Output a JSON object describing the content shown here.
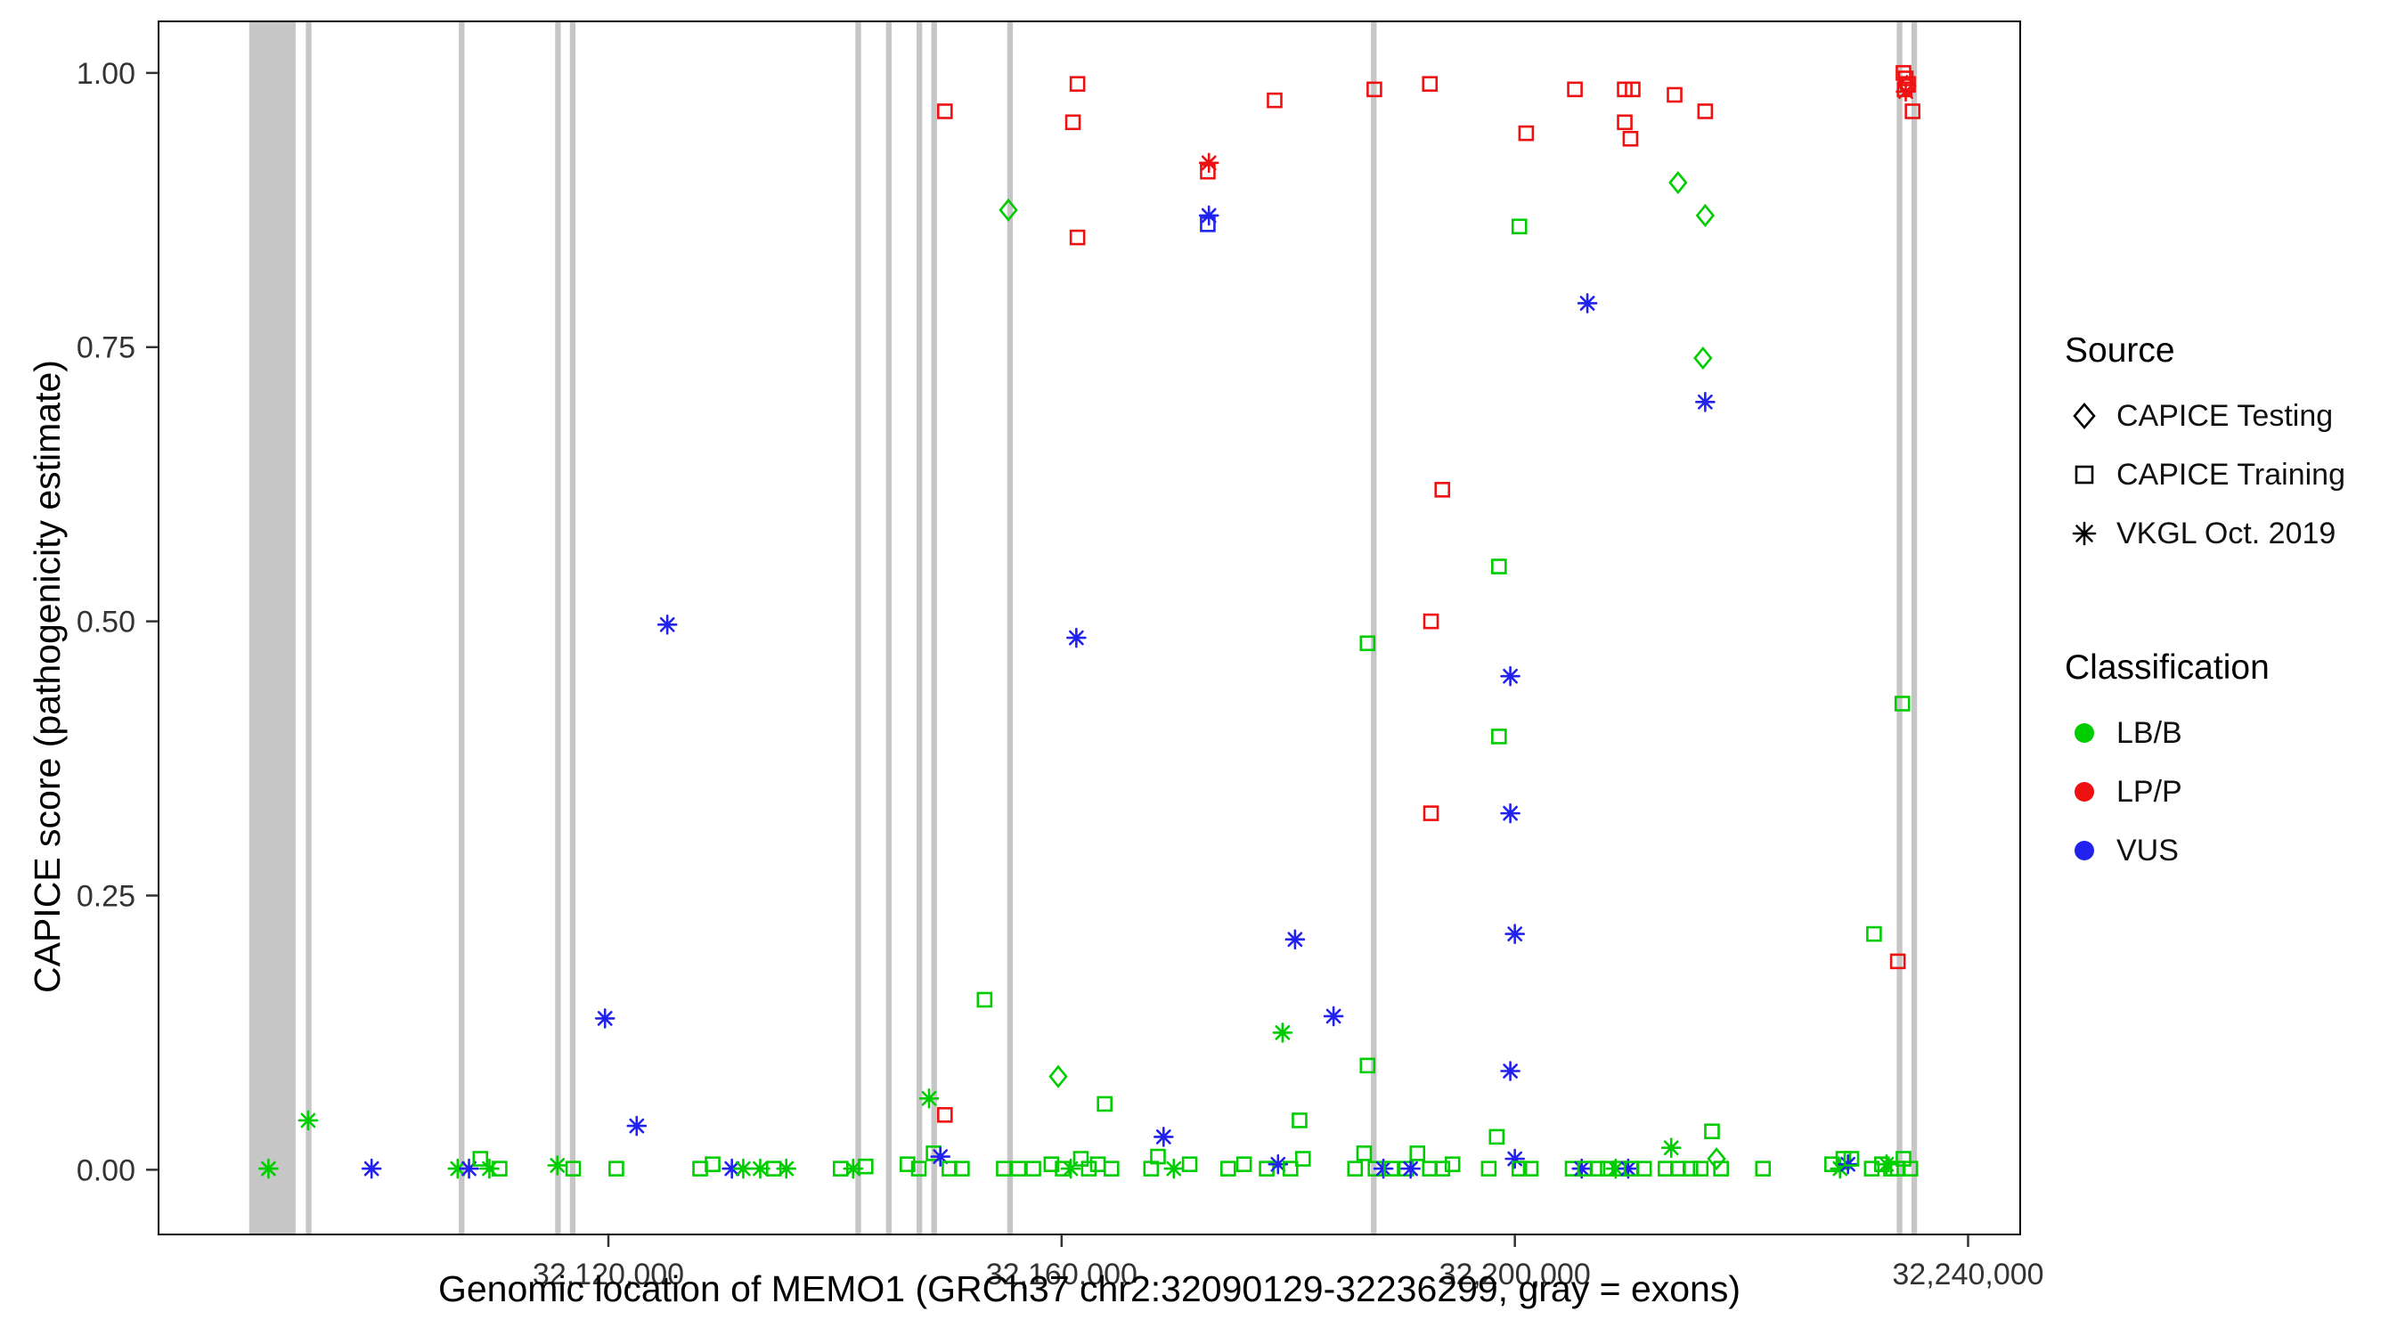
{
  "chart_data": {
    "type": "scatter",
    "xlabel": "Genomic location of MEMO1 (GRCh37 chr2:32090129-32236299, gray = exons)",
    "ylabel": "CAPICE score (pathogenicity estimate)",
    "x_range": [
      32080300,
      32244600
    ],
    "y_range": [
      -0.059,
      1.047
    ],
    "x_ticks": [
      {
        "value": 32120000,
        "label": "32,120,000"
      },
      {
        "value": 32160000,
        "label": "32,160,000"
      },
      {
        "value": 32200000,
        "label": "32,200,000"
      },
      {
        "value": 32240000,
        "label": "32,240,000"
      }
    ],
    "y_ticks": [
      {
        "value": 0.0,
        "label": "0.00"
      },
      {
        "value": 0.25,
        "label": "0.25"
      },
      {
        "value": 0.5,
        "label": "0.50"
      },
      {
        "value": 0.75,
        "label": "0.75"
      },
      {
        "value": 1.0,
        "label": "1.00"
      }
    ],
    "colors": {
      "LB/B": "#00cd00",
      "LP/P": "#ee1111",
      "VUS": "#2222ee",
      "exon": "#c6c6c6",
      "axis": "#333333"
    },
    "legend": {
      "source": {
        "title": "Source",
        "items": [
          {
            "label": "CAPICE Testing",
            "marker": "diamond"
          },
          {
            "label": "CAPICE Training",
            "marker": "square"
          },
          {
            "label": "VKGL Oct. 2019",
            "marker": "asterisk"
          }
        ]
      },
      "classification": {
        "title": "Classification",
        "items": [
          {
            "label": "LB/B",
            "color": "#00cd00"
          },
          {
            "label": "LP/P",
            "color": "#ee1111"
          },
          {
            "label": "VUS",
            "color": "#2222ee"
          }
        ]
      }
    },
    "exons": [
      [
        32088300,
        32092400
      ],
      [
        32093300,
        32093800
      ],
      [
        32106800,
        32107300
      ],
      [
        32115300,
        32115800
      ],
      [
        32116600,
        32117100
      ],
      [
        32141800,
        32142300
      ],
      [
        32144500,
        32145000
      ],
      [
        32147200,
        32147700
      ],
      [
        32148500,
        32149000
      ],
      [
        32155200,
        32155700
      ],
      [
        32187300,
        32187800
      ],
      [
        32233700,
        32234200
      ],
      [
        32235000,
        32235500
      ]
    ],
    "points": [
      [
        32090000,
        0.001,
        "vkgl",
        "LB/B"
      ],
      [
        32093500,
        0.045,
        "vkgl",
        "LB/B"
      ],
      [
        32099100,
        0.001,
        "vkgl",
        "VUS"
      ],
      [
        32106700,
        0.001,
        "vkgl",
        "LB/B"
      ],
      [
        32107700,
        0.001,
        "vkgl",
        "VUS"
      ],
      [
        32108700,
        0.01,
        "training",
        "LB/B"
      ],
      [
        32109500,
        0.001,
        "vkgl",
        "LB/B"
      ],
      [
        32110400,
        0.001,
        "training",
        "LB/B"
      ],
      [
        32115500,
        0.004,
        "vkgl",
        "LB/B"
      ],
      [
        32116900,
        0.001,
        "training",
        "LB/B"
      ],
      [
        32119700,
        0.138,
        "vkgl",
        "VUS"
      ],
      [
        32120700,
        0.001,
        "training",
        "LB/B"
      ],
      [
        32122500,
        0.04,
        "vkgl",
        "VUS"
      ],
      [
        32125200,
        0.497,
        "vkgl",
        "VUS"
      ],
      [
        32128100,
        0.001,
        "training",
        "LB/B"
      ],
      [
        32129200,
        0.005,
        "training",
        "LB/B"
      ],
      [
        32130900,
        0.001,
        "vkgl",
        "VUS"
      ],
      [
        32131900,
        0.001,
        "vkgl",
        "LB/B"
      ],
      [
        32133400,
        0.001,
        "vkgl",
        "LB/B"
      ],
      [
        32134600,
        0.001,
        "training",
        "LB/B"
      ],
      [
        32135700,
        0.001,
        "vkgl",
        "LB/B"
      ],
      [
        32140500,
        0.001,
        "training",
        "LB/B"
      ],
      [
        32141600,
        0.001,
        "vkgl",
        "LB/B"
      ],
      [
        32142700,
        0.003,
        "training",
        "LB/B"
      ],
      [
        32146400,
        0.005,
        "training",
        "LB/B"
      ],
      [
        32147400,
        0.001,
        "training",
        "LB/B"
      ],
      [
        32148300,
        0.065,
        "vkgl",
        "LB/B"
      ],
      [
        32148700,
        0.015,
        "training",
        "LB/B"
      ],
      [
        32149300,
        0.012,
        "vkgl",
        "VUS"
      ],
      [
        32149700,
        0.05,
        "training",
        "LP/P"
      ],
      [
        32149700,
        0.965,
        "training",
        "LP/P"
      ],
      [
        32150100,
        0.001,
        "training",
        "LB/B"
      ],
      [
        32151200,
        0.001,
        "training",
        "LB/B"
      ],
      [
        32153200,
        0.155,
        "training",
        "LB/B"
      ],
      [
        32154900,
        0.001,
        "training",
        "LB/B"
      ],
      [
        32155300,
        0.875,
        "testing",
        "LB/B"
      ],
      [
        32156200,
        0.001,
        "training",
        "LB/B"
      ],
      [
        32157500,
        0.001,
        "training",
        "LB/B"
      ],
      [
        32159100,
        0.005,
        "training",
        "LB/B"
      ],
      [
        32159700,
        0.085,
        "testing",
        "LB/B"
      ],
      [
        32160100,
        0.001,
        "training",
        "LB/B"
      ],
      [
        32160800,
        0.001,
        "vkgl",
        "LB/B"
      ],
      [
        32161000,
        0.955,
        "training",
        "LP/P"
      ],
      [
        32161400,
        0.99,
        "training",
        "LP/P"
      ],
      [
        32161400,
        0.85,
        "training",
        "LP/P"
      ],
      [
        32161300,
        0.485,
        "vkgl",
        "VUS"
      ],
      [
        32161700,
        0.01,
        "training",
        "LB/B"
      ],
      [
        32162400,
        0.001,
        "training",
        "LB/B"
      ],
      [
        32163200,
        0.005,
        "training",
        "LB/B"
      ],
      [
        32163800,
        0.06,
        "training",
        "LB/B"
      ],
      [
        32164400,
        0.001,
        "training",
        "LB/B"
      ],
      [
        32167900,
        0.001,
        "training",
        "LB/B"
      ],
      [
        32168500,
        0.012,
        "training",
        "LB/B"
      ],
      [
        32169000,
        0.03,
        "vkgl",
        "VUS"
      ],
      [
        32169900,
        0.001,
        "vkgl",
        "LB/B"
      ],
      [
        32171300,
        0.005,
        "training",
        "LB/B"
      ],
      [
        32172900,
        0.91,
        "training",
        "LP/P"
      ],
      [
        32173000,
        0.918,
        "vkgl",
        "LP/P"
      ],
      [
        32173000,
        0.87,
        "vkgl",
        "VUS"
      ],
      [
        32172900,
        0.862,
        "training",
        "VUS"
      ],
      [
        32174700,
        0.001,
        "training",
        "LB/B"
      ],
      [
        32176100,
        0.005,
        "training",
        "LB/B"
      ],
      [
        32178100,
        0.001,
        "training",
        "LB/B"
      ],
      [
        32178800,
        0.975,
        "training",
        "LP/P"
      ],
      [
        32179100,
        0.005,
        "vkgl",
        "VUS"
      ],
      [
        32179500,
        0.125,
        "vkgl",
        "LB/B"
      ],
      [
        32180200,
        0.001,
        "training",
        "LB/B"
      ],
      [
        32180600,
        0.21,
        "vkgl",
        "VUS"
      ],
      [
        32181000,
        0.045,
        "training",
        "LB/B"
      ],
      [
        32181300,
        0.01,
        "training",
        "LB/B"
      ],
      [
        32184000,
        0.14,
        "vkgl",
        "VUS"
      ],
      [
        32185900,
        0.001,
        "training",
        "LB/B"
      ],
      [
        32186700,
        0.015,
        "training",
        "LB/B"
      ],
      [
        32187000,
        0.095,
        "training",
        "LB/B"
      ],
      [
        32187000,
        0.48,
        "training",
        "LB/B"
      ],
      [
        32187600,
        0.985,
        "training",
        "LP/P"
      ],
      [
        32187700,
        0.001,
        "training",
        "LB/B"
      ],
      [
        32188400,
        0.001,
        "vkgl",
        "VUS"
      ],
      [
        32189100,
        0.001,
        "training",
        "LB/B"
      ],
      [
        32190400,
        0.001,
        "training",
        "LB/B"
      ],
      [
        32190800,
        0.001,
        "vkgl",
        "VUS"
      ],
      [
        32191400,
        0.015,
        "training",
        "LB/B"
      ],
      [
        32192500,
        0.99,
        "training",
        "LP/P"
      ],
      [
        32192600,
        0.5,
        "training",
        "LP/P"
      ],
      [
        32192600,
        0.325,
        "training",
        "LP/P"
      ],
      [
        32193600,
        0.62,
        "training",
        "LP/P"
      ],
      [
        32192500,
        0.001,
        "training",
        "LB/B"
      ],
      [
        32193600,
        0.001,
        "training",
        "LB/B"
      ],
      [
        32194500,
        0.005,
        "training",
        "LB/B"
      ],
      [
        32197700,
        0.001,
        "training",
        "LB/B"
      ],
      [
        32198400,
        0.03,
        "training",
        "LB/B"
      ],
      [
        32198600,
        0.55,
        "training",
        "LB/B"
      ],
      [
        32198600,
        0.395,
        "training",
        "LB/B"
      ],
      [
        32199600,
        0.45,
        "vkgl",
        "VUS"
      ],
      [
        32199600,
        0.325,
        "vkgl",
        "VUS"
      ],
      [
        32200000,
        0.215,
        "vkgl",
        "VUS"
      ],
      [
        32199600,
        0.09,
        "vkgl",
        "VUS"
      ],
      [
        32200400,
        0.86,
        "training",
        "LB/B"
      ],
      [
        32201000,
        0.945,
        "training",
        "LP/P"
      ],
      [
        32200000,
        0.01,
        "vkgl",
        "VUS"
      ],
      [
        32200400,
        0.001,
        "training",
        "LB/B"
      ],
      [
        32201400,
        0.001,
        "training",
        "LB/B"
      ],
      [
        32205100,
        0.001,
        "training",
        "LB/B"
      ],
      [
        32205300,
        0.985,
        "training",
        "LP/P"
      ],
      [
        32205900,
        0.001,
        "vkgl",
        "VUS"
      ],
      [
        32206200,
        0.001,
        "training",
        "LB/B"
      ],
      [
        32206400,
        0.79,
        "vkgl",
        "VUS"
      ],
      [
        32207300,
        0.001,
        "training",
        "LB/B"
      ],
      [
        32208200,
        0.001,
        "training",
        "LB/B"
      ],
      [
        32208900,
        0.001,
        "vkgl",
        "LB/B"
      ],
      [
        32209200,
        0.001,
        "training",
        "LB/B"
      ],
      [
        32209700,
        0.985,
        "training",
        "LP/P"
      ],
      [
        32210400,
        0.985,
        "training",
        "LP/P"
      ],
      [
        32209700,
        0.955,
        "training",
        "LP/P"
      ],
      [
        32210200,
        0.94,
        "training",
        "LP/P"
      ],
      [
        32210000,
        0.001,
        "vkgl",
        "VUS"
      ],
      [
        32210300,
        0.001,
        "training",
        "LB/B"
      ],
      [
        32211400,
        0.001,
        "training",
        "LB/B"
      ],
      [
        32213300,
        0.001,
        "training",
        "LB/B"
      ],
      [
        32213800,
        0.02,
        "vkgl",
        "LB/B"
      ],
      [
        32214100,
        0.98,
        "training",
        "LP/P"
      ],
      [
        32214400,
        0.9,
        "testing",
        "LB/B"
      ],
      [
        32214400,
        0.001,
        "training",
        "LB/B"
      ],
      [
        32215500,
        0.001,
        "training",
        "LB/B"
      ],
      [
        32216400,
        0.001,
        "training",
        "LB/B"
      ],
      [
        32216600,
        0.74,
        "testing",
        "LB/B"
      ],
      [
        32216800,
        0.87,
        "testing",
        "LB/B"
      ],
      [
        32216800,
        0.965,
        "training",
        "LP/P"
      ],
      [
        32216800,
        0.7,
        "vkgl",
        "VUS"
      ],
      [
        32217400,
        0.035,
        "training",
        "LB/B"
      ],
      [
        32217800,
        0.01,
        "testing",
        "LB/B"
      ],
      [
        32218200,
        0.001,
        "training",
        "LB/B"
      ],
      [
        32221900,
        0.001,
        "training",
        "LB/B"
      ],
      [
        32228000,
        0.005,
        "training",
        "LB/B"
      ],
      [
        32228700,
        0.001,
        "vkgl",
        "LB/B"
      ],
      [
        32229000,
        0.01,
        "training",
        "LB/B"
      ],
      [
        32229400,
        0.005,
        "vkgl",
        "VUS"
      ],
      [
        32229700,
        0.01,
        "training",
        "LB/B"
      ],
      [
        32231500,
        0.001,
        "training",
        "LB/B"
      ],
      [
        32231700,
        0.215,
        "training",
        "LB/B"
      ],
      [
        32232400,
        0.005,
        "training",
        "LB/B"
      ],
      [
        32232800,
        0.005,
        "vkgl",
        "LB/B"
      ],
      [
        32233200,
        0.001,
        "training",
        "LB/B"
      ],
      [
        32233800,
        0.19,
        "training",
        "LP/P"
      ],
      [
        32233800,
        0.001,
        "training",
        "LB/B"
      ],
      [
        32234200,
        0.425,
        "training",
        "LB/B"
      ],
      [
        32234300,
        0.01,
        "training",
        "LB/B"
      ],
      [
        32234900,
        0.001,
        "training",
        "LB/B"
      ],
      [
        32234300,
        1.0,
        "training",
        "LP/P"
      ],
      [
        32234500,
        0.995,
        "training",
        "LP/P"
      ],
      [
        32234700,
        0.99,
        "training",
        "LP/P"
      ],
      [
        32234400,
        0.985,
        "training",
        "LP/P"
      ],
      [
        32234600,
        0.988,
        "testing",
        "LP/P"
      ],
      [
        32234500,
        0.983,
        "vkgl",
        "LP/P"
      ],
      [
        32235100,
        0.965,
        "training",
        "LP/P"
      ]
    ]
  }
}
